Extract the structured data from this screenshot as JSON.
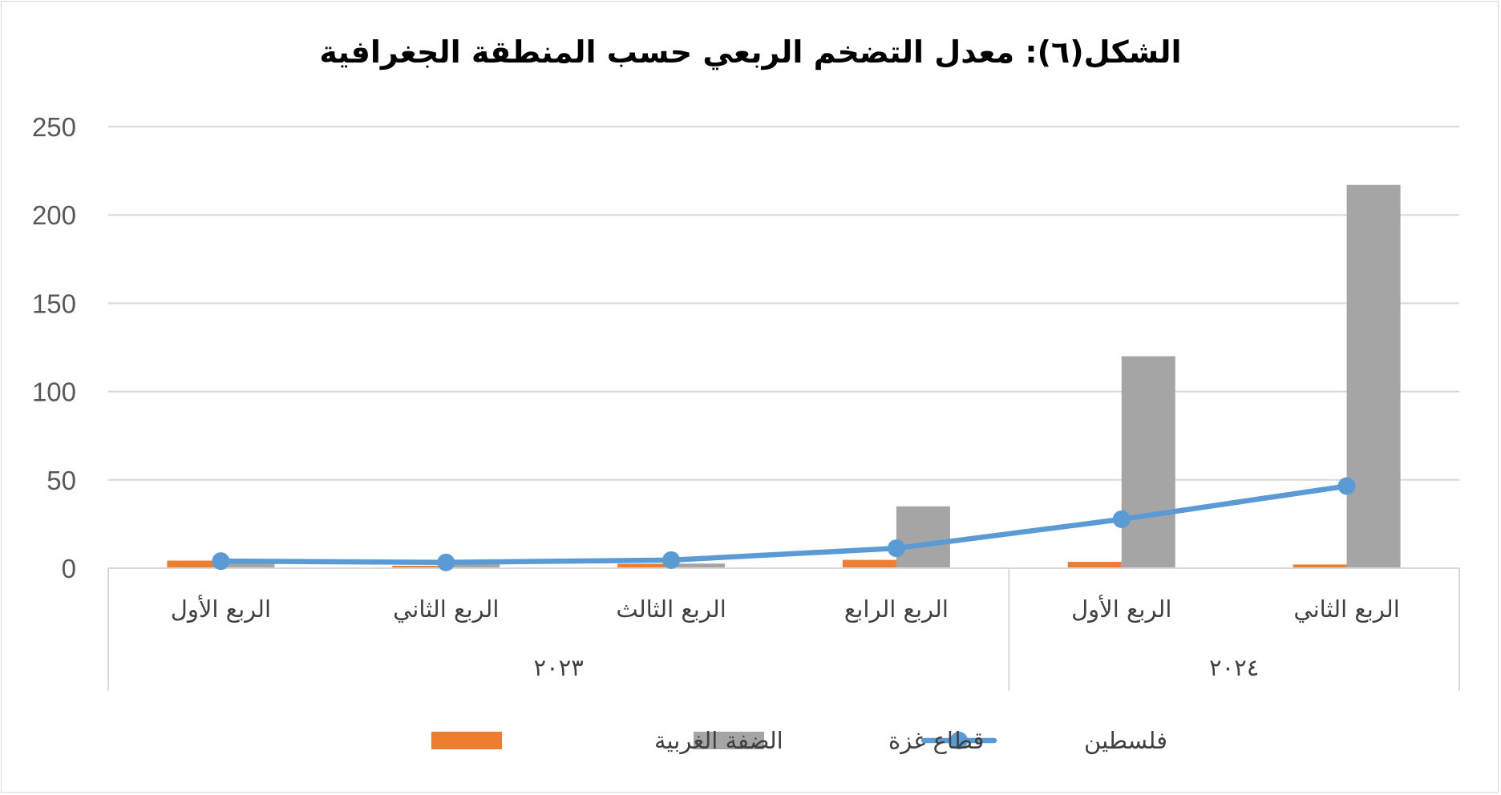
{
  "chart_data": {
    "type": "bar",
    "title": "الشكل(٦): معدل التضخم الربعي حسب المنطقة الجغرافية",
    "categories": [
      "الربع الأول",
      "الربع الثاني",
      "الربع الثالث",
      "الربع الرابع",
      "الربع الأول",
      "الربع الثاني"
    ],
    "groups": [
      {
        "label": "٢٠٢٣",
        "span": 4
      },
      {
        "label": "٢٠٢٤",
        "span": 2
      }
    ],
    "ylim": [
      0,
      250
    ],
    "yticks": [
      "0",
      "50",
      "100",
      "150",
      "200",
      "250"
    ],
    "grid": true,
    "legend_position": "bottom",
    "series": [
      {
        "name": "الضفة الغربية",
        "kind": "bar",
        "color": "#ED7D31",
        "values": [
          4.3,
          1.4,
          2.5,
          4.7,
          3.6,
          2.1
        ]
      },
      {
        "name": "قطاع غزة",
        "kind": "bar",
        "color": "#A5A5A5",
        "values": [
          3.0,
          2.2,
          2.6,
          35.0,
          120.0,
          217.0
        ]
      },
      {
        "name": "فلسطين",
        "kind": "line",
        "color": "#5B9BD5",
        "values": [
          4.0,
          3.3,
          4.6,
          11.3,
          27.7,
          46.5
        ]
      }
    ]
  }
}
